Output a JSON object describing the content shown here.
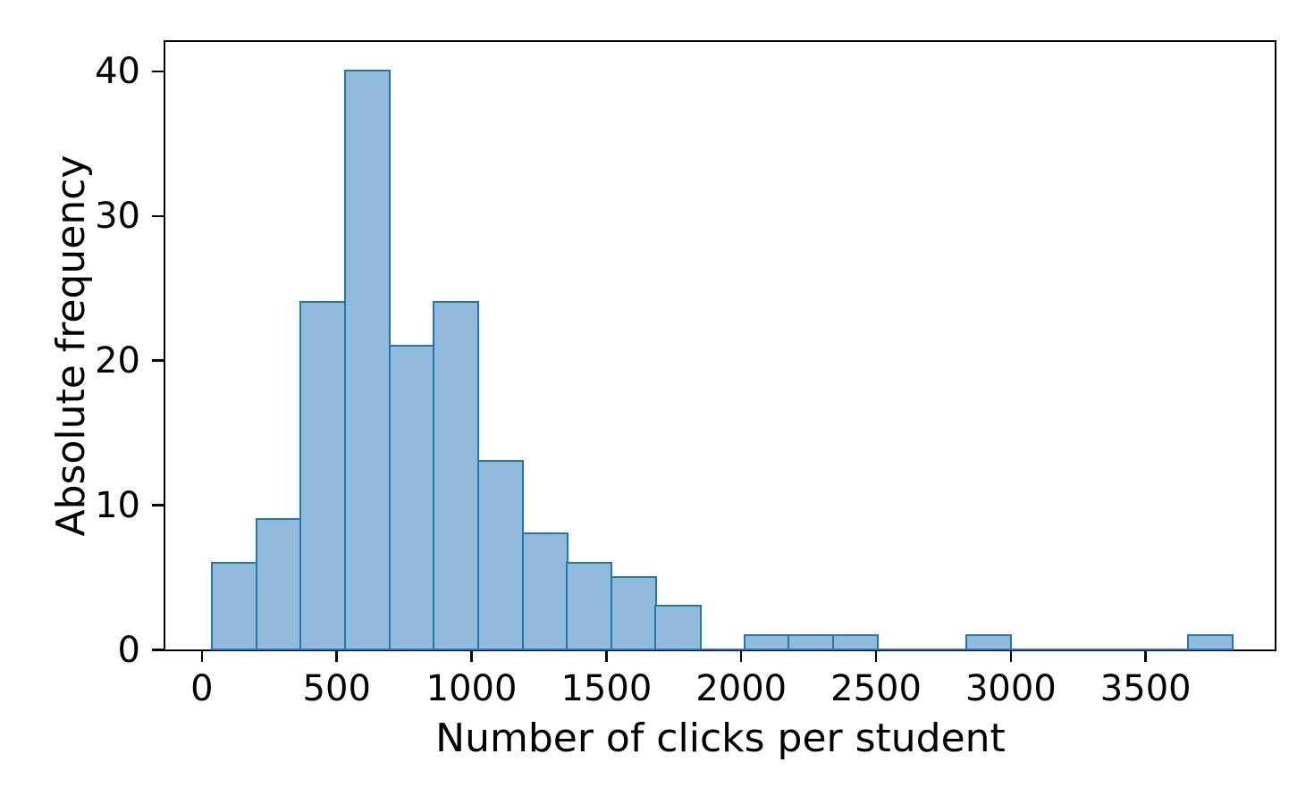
{
  "chart_data": {
    "type": "bar",
    "variant": "histogram",
    "title": "",
    "xlabel": "Number of clicks per student",
    "ylabel": "Absolute frequency",
    "bin_edges": [
      40,
      204.5,
      369,
      533.5,
      698,
      862.5,
      1027,
      1191.5,
      1356,
      1520.5,
      1685,
      1849.5,
      2014,
      2178.5,
      2343,
      2507.5,
      2672,
      2836.5,
      3001,
      3165.5,
      3330,
      3494.5,
      3659,
      3823.5
    ],
    "counts": [
      6,
      9,
      24,
      40,
      21,
      24,
      13,
      8,
      6,
      5,
      3,
      0,
      1,
      1,
      1,
      0,
      0,
      1,
      0,
      0,
      0,
      0,
      1
    ],
    "xticks": [
      0,
      500,
      1000,
      1500,
      2000,
      2500,
      3000,
      3500
    ],
    "yticks": [
      0,
      10,
      20,
      30,
      40
    ],
    "xlim": [
      -134,
      3980
    ],
    "ylim": [
      0,
      42
    ],
    "grid": false,
    "legend": false,
    "colors": {
      "bar_fill": "#91badb",
      "bar_edge": "#1f77b4",
      "axis": "#000000",
      "text": "#000000",
      "background": "#ffffff"
    }
  }
}
